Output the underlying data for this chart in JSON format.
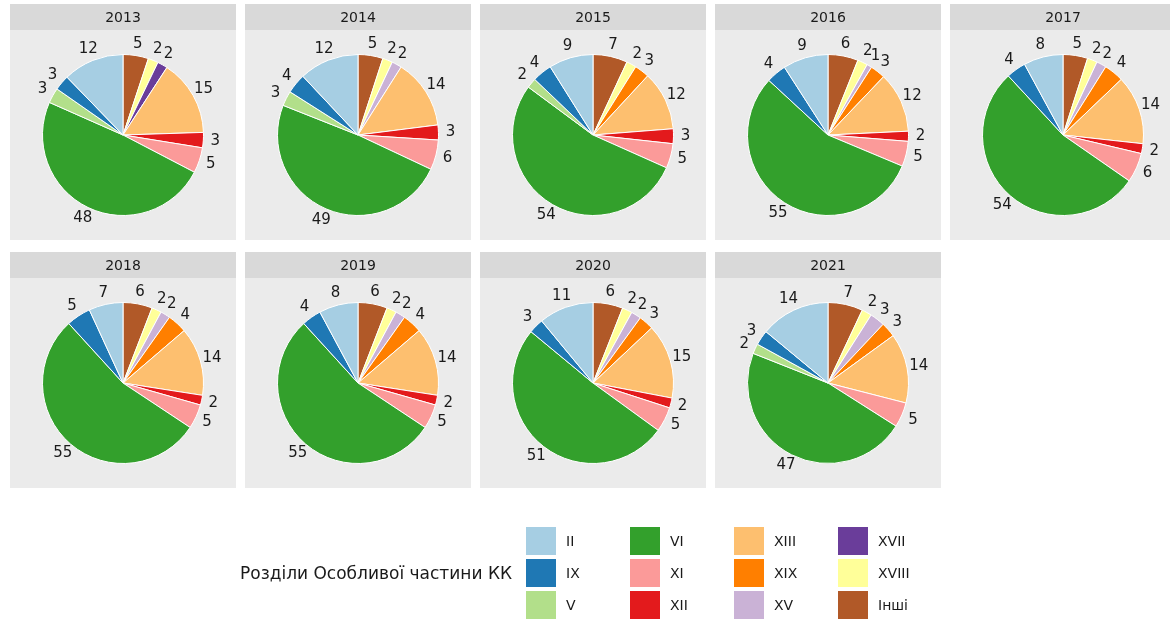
{
  "chart_data": [
    {
      "type": "pie",
      "title": "2013",
      "categories": [
        "Інші",
        "XVIII",
        "XVII",
        "XV",
        "XIX",
        "XIII",
        "XII",
        "XI",
        "VI",
        "V",
        "IX",
        "II"
      ],
      "values": [
        5,
        2,
        2,
        null,
        null,
        15,
        3,
        5,
        48,
        3,
        3,
        12
      ],
      "colors": [
        "#b15928",
        "#ffff99",
        "#6a3d9a",
        "#cab2d6",
        "#ff7f00",
        "#fdbf6f",
        "#e31a1c",
        "#fb9a99",
        "#33a02c",
        "#b2df8a",
        "#1f78b4",
        "#a6cee3"
      ],
      "data_labels": true,
      "legend": "bottom",
      "legend_title": "Розділи Особливої частини КК"
    },
    {
      "type": "pie",
      "title": "2014",
      "categories": [
        null,
        null,
        null,
        null,
        null,
        null,
        null,
        null,
        null,
        null,
        null,
        null
      ],
      "values": [
        5,
        2,
        null,
        2,
        null,
        14,
        3,
        6,
        49,
        3,
        4,
        12
      ],
      "colors": [
        "#b15928",
        "#ffff99",
        "#6a3d9a",
        "#cab2d6",
        "#ff7f00",
        "#fdbf6f",
        "#e31a1c",
        "#fb9a99",
        "#33a02c",
        "#b2df8a",
        "#1f78b4",
        "#a6cee3"
      ],
      "data_labels": true
    },
    {
      "type": "pie",
      "title": "2015",
      "categories": [
        null,
        null,
        null,
        null,
        null,
        null,
        null,
        null,
        null,
        null,
        null,
        null
      ],
      "values": [
        7,
        2,
        null,
        null,
        3,
        12,
        3,
        5,
        54,
        2,
        4,
        9
      ],
      "colors": [
        "#b15928",
        "#ffff99",
        "#6a3d9a",
        "#cab2d6",
        "#ff7f00",
        "#fdbf6f",
        "#e31a1c",
        "#fb9a99",
        "#33a02c",
        "#b2df8a",
        "#1f78b4",
        "#a6cee3"
      ],
      "data_labels": true
    },
    {
      "type": "pie",
      "title": "2016",
      "categories": [
        null,
        null,
        null,
        null,
        null,
        null,
        null,
        null,
        null,
        null,
        null,
        null
      ],
      "values": [
        6,
        2,
        null,
        1,
        3,
        12,
        2,
        5,
        55,
        null,
        4,
        9
      ],
      "colors": [
        "#b15928",
        "#ffff99",
        "#6a3d9a",
        "#cab2d6",
        "#ff7f00",
        "#fdbf6f",
        "#e31a1c",
        "#fb9a99",
        "#33a02c",
        "#b2df8a",
        "#1f78b4",
        "#a6cee3"
      ],
      "data_labels": true
    },
    {
      "type": "pie",
      "title": "2017",
      "categories": [
        null,
        null,
        null,
        null,
        null,
        null,
        null,
        null,
        null,
        null,
        null,
        null
      ],
      "values": [
        5,
        2,
        null,
        2,
        4,
        14,
        2,
        6,
        54,
        null,
        4,
        8
      ],
      "colors": [
        "#b15928",
        "#ffff99",
        "#6a3d9a",
        "#cab2d6",
        "#ff7f00",
        "#fdbf6f",
        "#e31a1c",
        "#fb9a99",
        "#33a02c",
        "#b2df8a",
        "#1f78b4",
        "#a6cee3"
      ],
      "data_labels": true
    },
    {
      "type": "pie",
      "title": "2018",
      "categories": [
        null,
        null,
        null,
        null,
        null,
        null,
        null,
        null,
        null,
        null,
        null,
        null
      ],
      "values": [
        6,
        2,
        null,
        2,
        4,
        14,
        2,
        5,
        55,
        null,
        5,
        7
      ],
      "colors": [
        "#b15928",
        "#ffff99",
        "#6a3d9a",
        "#cab2d6",
        "#ff7f00",
        "#fdbf6f",
        "#e31a1c",
        "#fb9a99",
        "#33a02c",
        "#b2df8a",
        "#1f78b4",
        "#a6cee3"
      ],
      "data_labels": true
    },
    {
      "type": "pie",
      "title": "2019",
      "categories": [
        null,
        null,
        null,
        null,
        null,
        null,
        null,
        null,
        null,
        null,
        null,
        null
      ],
      "values": [
        6,
        2,
        null,
        2,
        4,
        14,
        2,
        5,
        55,
        null,
        4,
        8
      ],
      "colors": [
        "#b15928",
        "#ffff99",
        "#6a3d9a",
        "#cab2d6",
        "#ff7f00",
        "#fdbf6f",
        "#e31a1c",
        "#fb9a99",
        "#33a02c",
        "#b2df8a",
        "#1f78b4",
        "#a6cee3"
      ],
      "data_labels": true
    },
    {
      "type": "pie",
      "title": "2020",
      "categories": [
        null,
        null,
        null,
        null,
        null,
        null,
        null,
        null,
        null,
        null,
        null,
        null
      ],
      "values": [
        6,
        2,
        null,
        2,
        3,
        15,
        2,
        5,
        51,
        null,
        3,
        11
      ],
      "colors": [
        "#b15928",
        "#ffff99",
        "#6a3d9a",
        "#cab2d6",
        "#ff7f00",
        "#fdbf6f",
        "#e31a1c",
        "#fb9a99",
        "#33a02c",
        "#b2df8a",
        "#1f78b4",
        "#a6cee3"
      ],
      "data_labels": true
    },
    {
      "type": "pie",
      "title": "2021",
      "categories": [
        null,
        null,
        null,
        null,
        null,
        null,
        null,
        null,
        null,
        null,
        null,
        null
      ],
      "values": [
        7,
        2,
        null,
        3,
        3,
        14,
        null,
        5,
        47,
        2,
        3,
        14
      ],
      "colors": [
        "#b15928",
        "#ffff99",
        "#6a3d9a",
        "#cab2d6",
        "#ff7f00",
        "#fdbf6f",
        "#e31a1c",
        "#fb9a99",
        "#33a02c",
        "#b2df8a",
        "#1f78b4",
        "#a6cee3"
      ],
      "data_labels": true
    }
  ]
}
